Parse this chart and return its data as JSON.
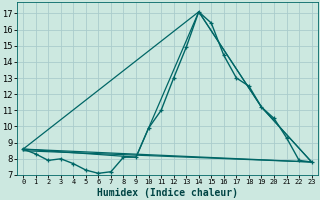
{
  "title": "",
  "xlabel": "Humidex (Indice chaleur)",
  "bg_color": "#cce8e0",
  "grid_color": "#aacccc",
  "line_color": "#006666",
  "xlim": [
    -0.5,
    23.5
  ],
  "ylim": [
    7,
    17.7
  ],
  "yticks": [
    7,
    8,
    9,
    10,
    11,
    12,
    13,
    14,
    15,
    16,
    17
  ],
  "xticks": [
    0,
    1,
    2,
    3,
    4,
    5,
    6,
    7,
    8,
    9,
    10,
    11,
    12,
    13,
    14,
    15,
    16,
    17,
    18,
    19,
    20,
    21,
    22,
    23
  ],
  "line1_x": [
    0,
    1,
    2,
    3,
    4,
    5,
    6,
    7,
    8,
    9,
    10,
    11,
    12,
    13,
    14,
    15,
    16,
    17,
    18,
    19,
    20,
    21,
    22,
    23
  ],
  "line1_y": [
    8.6,
    8.3,
    7.9,
    8.0,
    7.7,
    7.3,
    7.1,
    7.2,
    8.1,
    8.1,
    9.9,
    11.0,
    13.0,
    14.9,
    17.1,
    16.4,
    14.4,
    13.0,
    12.5,
    11.2,
    10.5,
    9.3,
    7.9,
    7.8
  ],
  "line2_x": [
    0,
    9,
    14,
    19,
    23
  ],
  "line2_y": [
    8.6,
    8.1,
    17.1,
    11.2,
    7.8
  ],
  "line3_x": [
    0,
    14,
    19,
    23
  ],
  "line3_y": [
    8.6,
    17.1,
    11.2,
    7.8
  ],
  "line4_x": [
    0,
    23
  ],
  "line4_y": [
    8.6,
    7.8
  ],
  "line5_x": [
    0,
    23
  ],
  "line5_y": [
    8.5,
    7.8
  ]
}
